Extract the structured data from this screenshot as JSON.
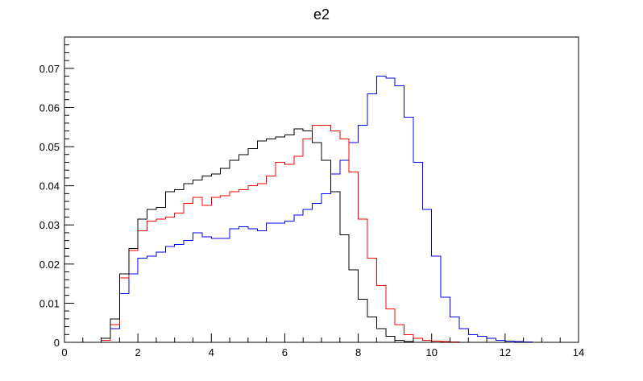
{
  "chart_data": {
    "type": "step-histogram",
    "title": "e2",
    "xlabel": "",
    "ylabel": "",
    "xlim": [
      0,
      14
    ],
    "ylim": [
      0,
      0.078
    ],
    "x_ticks": [
      0,
      2,
      4,
      6,
      8,
      10,
      12,
      14
    ],
    "y_ticks": [
      0,
      0.01,
      0.02,
      0.03,
      0.04,
      0.05,
      0.06,
      0.07
    ],
    "x_tick_labels": [
      "0",
      "2",
      "4",
      "6",
      "8",
      "10",
      "12",
      "14"
    ],
    "y_tick_labels": [
      "0",
      "0.01",
      "0.02",
      "0.03",
      "0.04",
      "0.05",
      "0.06",
      "0.07"
    ],
    "grid": false,
    "bin_edges_start": 0,
    "bin_width": 0.25,
    "series": [
      {
        "color": "#0000ff",
        "values": [
          0,
          0,
          0,
          0,
          0.0005,
          0.0035,
          0.0125,
          0.0175,
          0.0215,
          0.022,
          0.023,
          0.0245,
          0.025,
          0.026,
          0.028,
          0.027,
          0.0265,
          0.0265,
          0.029,
          0.0295,
          0.029,
          0.0285,
          0.0305,
          0.0305,
          0.031,
          0.0325,
          0.034,
          0.0355,
          0.038,
          0.043,
          0.0465,
          0.051,
          0.0555,
          0.0635,
          0.068,
          0.0675,
          0.0655,
          0.0575,
          0.046,
          0.034,
          0.022,
          0.0115,
          0.0065,
          0.0035,
          0.002,
          0.0015,
          0.001,
          0.0005,
          0.0003,
          0.0002,
          0.0001,
          0,
          0,
          0,
          0,
          0
        ]
      },
      {
        "color": "#ff0000",
        "values": [
          0,
          0,
          0,
          0,
          0.0005,
          0.0045,
          0.0165,
          0.0235,
          0.0285,
          0.031,
          0.0315,
          0.032,
          0.033,
          0.0355,
          0.037,
          0.035,
          0.037,
          0.0375,
          0.0385,
          0.039,
          0.04,
          0.0405,
          0.0425,
          0.046,
          0.0455,
          0.0475,
          0.052,
          0.0555,
          0.0555,
          0.054,
          0.052,
          0.0435,
          0.0315,
          0.0215,
          0.0145,
          0.0085,
          0.0045,
          0.002,
          0.001,
          0.0005,
          0.0003,
          0.0002,
          0.0001,
          0,
          0,
          0,
          0,
          0,
          0,
          0,
          0,
          0,
          0,
          0,
          0,
          0
        ]
      },
      {
        "color": "#000000",
        "values": [
          0,
          0,
          0,
          0,
          0.001,
          0.006,
          0.0175,
          0.024,
          0.0315,
          0.034,
          0.0345,
          0.0385,
          0.039,
          0.0405,
          0.0415,
          0.0425,
          0.043,
          0.0445,
          0.0465,
          0.048,
          0.0495,
          0.0515,
          0.052,
          0.0525,
          0.053,
          0.0545,
          0.054,
          0.051,
          0.0465,
          0.0385,
          0.0275,
          0.0185,
          0.011,
          0.0065,
          0.0035,
          0.0015,
          0.0005,
          0.0002,
          0,
          0,
          0,
          0,
          0,
          0,
          0,
          0,
          0,
          0,
          0,
          0,
          0,
          0,
          0,
          0,
          0,
          0
        ]
      }
    ]
  }
}
